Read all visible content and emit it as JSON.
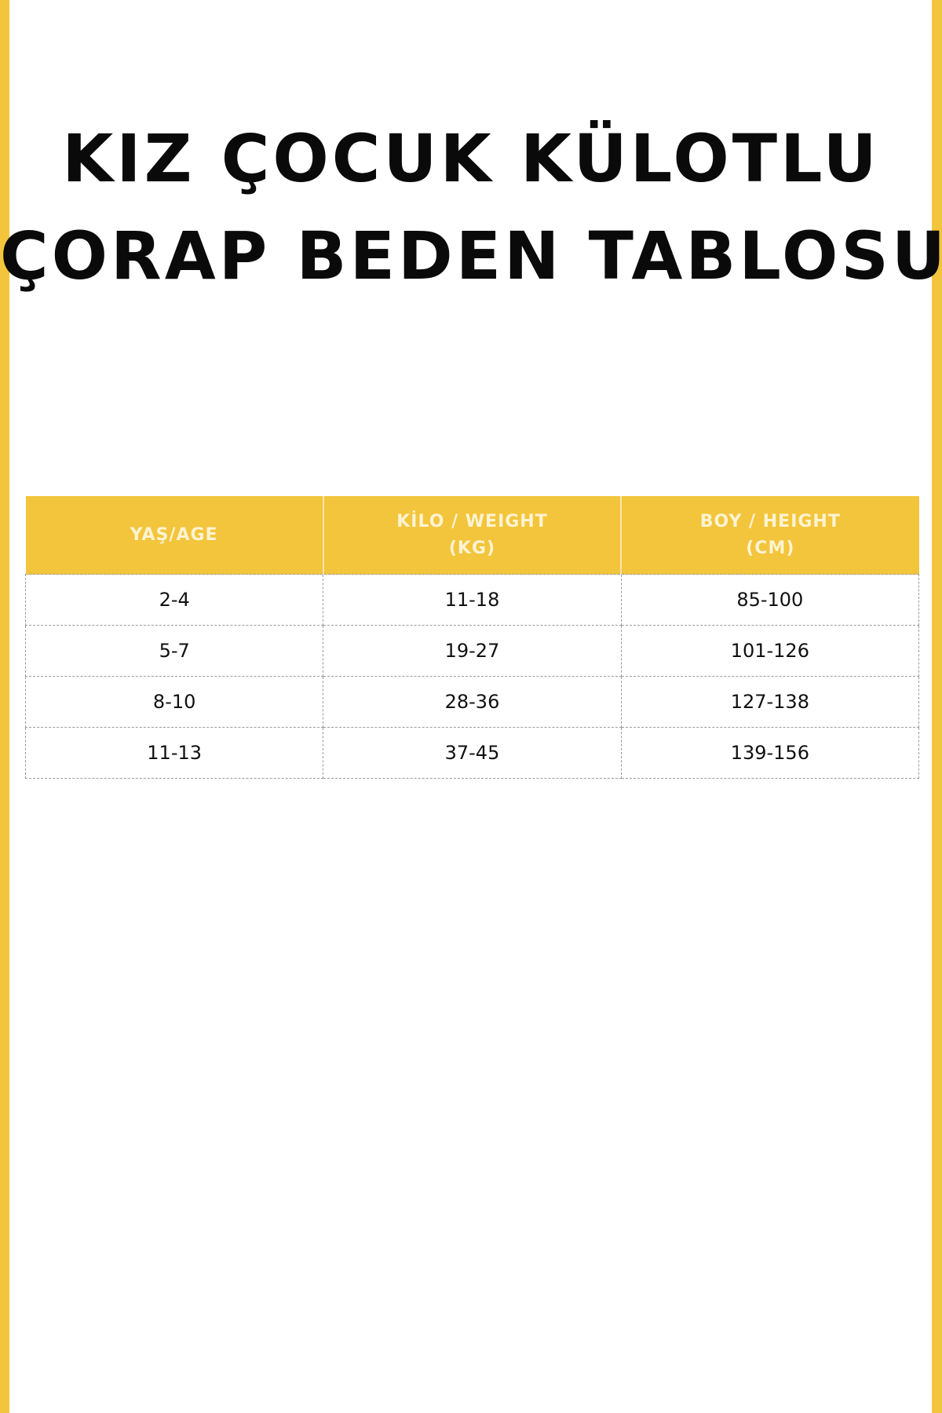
{
  "title": {
    "line1": "KIZ ÇOCUK KÜLOTLU",
    "line2": "ÇORAP BEDEN TABLOSU"
  },
  "colors": {
    "accent": "#f3c53c",
    "header_text": "#fdf3d2"
  },
  "table": {
    "headers": [
      {
        "line1": "YAŞ/AGE",
        "line2": ""
      },
      {
        "line1": "KİLO / WEIGHT",
        "line2": "(KG)"
      },
      {
        "line1": "BOY / HEIGHT",
        "line2": "(CM)"
      }
    ],
    "rows": [
      [
        "2-4",
        "11-18",
        "85-100"
      ],
      [
        "5-7",
        "19-27",
        "101-126"
      ],
      [
        "8-10",
        "28-36",
        "127-138"
      ],
      [
        "11-13",
        "37-45",
        "139-156"
      ]
    ]
  }
}
